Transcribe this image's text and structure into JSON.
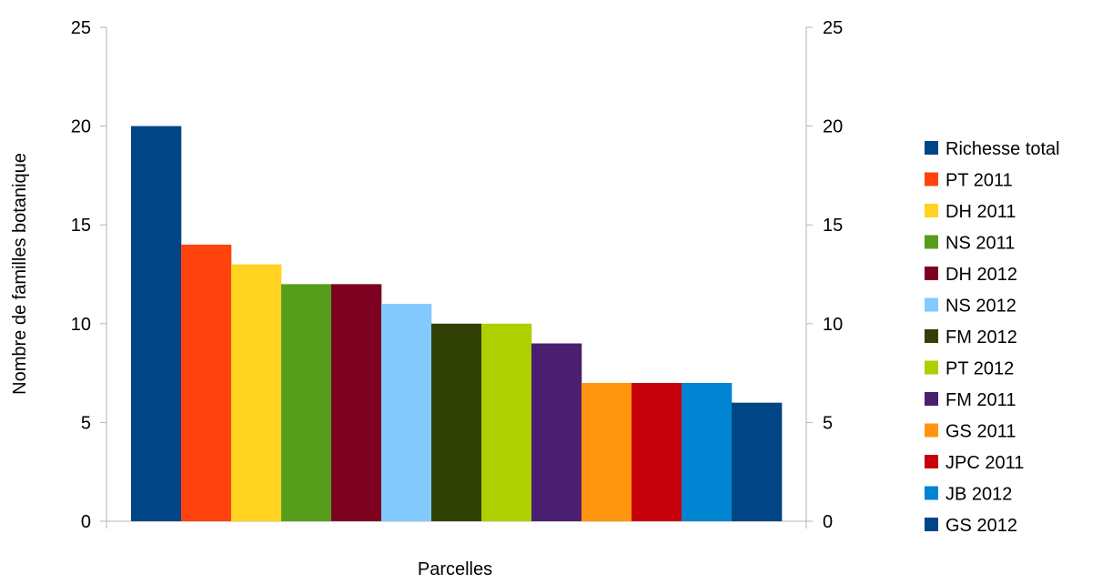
{
  "chart_data": {
    "type": "bar",
    "title": "",
    "xlabel": "Parcelles",
    "ylabel": "Nombre de familles botanique",
    "ylim": [
      0,
      25
    ],
    "y_ticks": [
      "0",
      "5",
      "10",
      "15",
      "20",
      "25"
    ],
    "secondary_y_axis": true,
    "grid": false,
    "legend_position": "right",
    "categories": [
      ""
    ],
    "series": [
      {
        "name": "Richesse total",
        "values": [
          20
        ],
        "color": "#004586"
      },
      {
        "name": "PT 2011",
        "values": [
          14
        ],
        "color": "#ff420e"
      },
      {
        "name": "DH 2011",
        "values": [
          13
        ],
        "color": "#ffd320"
      },
      {
        "name": "NS 2011",
        "values": [
          12
        ],
        "color": "#579d1c"
      },
      {
        "name": "DH 2012",
        "values": [
          12
        ],
        "color": "#7e0021"
      },
      {
        "name": "NS 2012",
        "values": [
          11
        ],
        "color": "#83caff"
      },
      {
        "name": "FM 2012",
        "values": [
          10
        ],
        "color": "#314004"
      },
      {
        "name": "PT 2012",
        "values": [
          10
        ],
        "color": "#aecf00"
      },
      {
        "name": "FM 2011",
        "values": [
          9
        ],
        "color": "#4b1f6f"
      },
      {
        "name": "GS 2011",
        "values": [
          7
        ],
        "color": "#ff950e"
      },
      {
        "name": "JPC 2011",
        "values": [
          7
        ],
        "color": "#c5000b"
      },
      {
        "name": "JB 2012",
        "values": [
          7
        ],
        "color": "#0084d1"
      },
      {
        "name": "GS 2012",
        "values": [
          6
        ],
        "color": "#004586"
      }
    ]
  }
}
